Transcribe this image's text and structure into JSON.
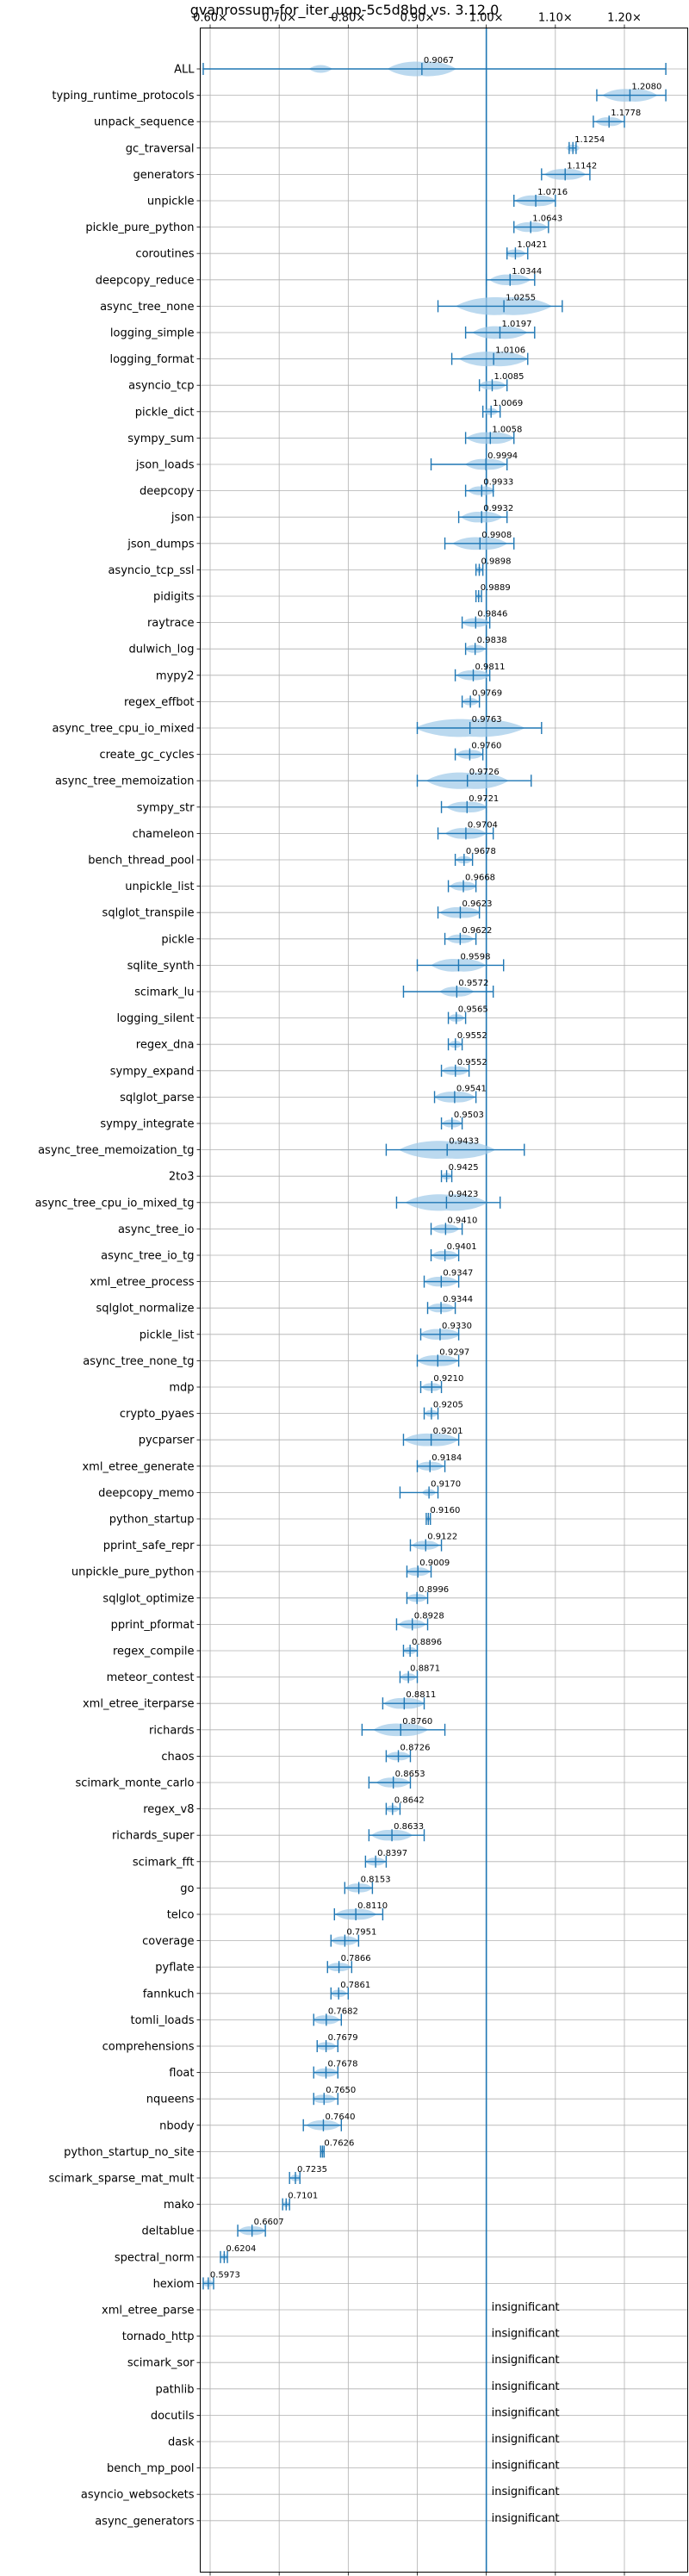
{
  "chart_data": {
    "type": "violin",
    "title": "gvanrossum-for_iter_uop-5c5d8bd vs. 3.12.0",
    "xlabel": "",
    "ylabel": "",
    "xlim": [
      0.55,
      1.27
    ],
    "xticks": [
      0.6,
      0.7,
      0.8,
      0.9,
      1.0,
      1.1,
      1.2
    ],
    "xtick_labels": [
      "0.60×",
      "0.70×",
      "0.80×",
      "0.90×",
      "1.00×",
      "1.10×",
      "1.20×"
    ],
    "reference_line": 1.0,
    "grid": true,
    "insignificant_label": "insignificant",
    "benchmarks": [
      {
        "name": "ALL",
        "value": 0.9067,
        "label": "0.9067",
        "lo": 0.59,
        "hi": 1.26,
        "spread": 0.05
      },
      {
        "name": "typing_runtime_protocols",
        "value": 1.208,
        "label": "1.2080",
        "lo": 1.16,
        "hi": 1.26,
        "spread": 0.04
      },
      {
        "name": "unpack_sequence",
        "value": 1.1778,
        "label": "1.1778",
        "lo": 1.155,
        "hi": 1.2,
        "spread": 0.02
      },
      {
        "name": "gc_traversal",
        "value": 1.1254,
        "label": "1.1254",
        "lo": 1.12,
        "hi": 1.13,
        "spread": 0.01
      },
      {
        "name": "generators",
        "value": 1.1142,
        "label": "1.1142",
        "lo": 1.08,
        "hi": 1.15,
        "spread": 0.03
      },
      {
        "name": "unpickle",
        "value": 1.0716,
        "label": "1.0716",
        "lo": 1.04,
        "hi": 1.1,
        "spread": 0.03
      },
      {
        "name": "pickle_pure_python",
        "value": 1.0643,
        "label": "1.0643",
        "lo": 1.04,
        "hi": 1.09,
        "spread": 0.025
      },
      {
        "name": "coroutines",
        "value": 1.0421,
        "label": "1.0421",
        "lo": 1.03,
        "hi": 1.06,
        "spread": 0.015
      },
      {
        "name": "deepcopy_reduce",
        "value": 1.0344,
        "label": "1.0344",
        "lo": 1.0,
        "hi": 1.07,
        "spread": 0.03
      },
      {
        "name": "async_tree_none",
        "value": 1.0255,
        "label": "1.0255",
        "lo": 0.93,
        "hi": 1.11,
        "spread": 0.07
      },
      {
        "name": "logging_simple",
        "value": 1.0197,
        "label": "1.0197",
        "lo": 0.97,
        "hi": 1.07,
        "spread": 0.04
      },
      {
        "name": "logging_format",
        "value": 1.0106,
        "label": "1.0106",
        "lo": 0.95,
        "hi": 1.06,
        "spread": 0.05
      },
      {
        "name": "asyncio_tcp",
        "value": 1.0085,
        "label": "1.0085",
        "lo": 0.99,
        "hi": 1.03,
        "spread": 0.02
      },
      {
        "name": "pickle_dict",
        "value": 1.0069,
        "label": "1.0069",
        "lo": 0.995,
        "hi": 1.02,
        "spread": 0.01
      },
      {
        "name": "sympy_sum",
        "value": 1.0058,
        "label": "1.0058",
        "lo": 0.97,
        "hi": 1.04,
        "spread": 0.035
      },
      {
        "name": "json_loads",
        "value": 0.9994,
        "label": "0.9994",
        "lo": 0.92,
        "hi": 1.03,
        "spread": 0.03
      },
      {
        "name": "deepcopy",
        "value": 0.9933,
        "label": "0.9933",
        "lo": 0.97,
        "hi": 1.01,
        "spread": 0.02
      },
      {
        "name": "json",
        "value": 0.9932,
        "label": "0.9932",
        "lo": 0.96,
        "hi": 1.03,
        "spread": 0.03
      },
      {
        "name": "json_dumps",
        "value": 0.9908,
        "label": "0.9908",
        "lo": 0.94,
        "hi": 1.04,
        "spread": 0.04
      },
      {
        "name": "asyncio_tcp_ssl",
        "value": 0.9898,
        "label": "0.9898",
        "lo": 0.985,
        "hi": 0.995,
        "spread": 0.005
      },
      {
        "name": "pidigits",
        "value": 0.9889,
        "label": "0.9889",
        "lo": 0.985,
        "hi": 0.993,
        "spread": 0.003
      },
      {
        "name": "raytrace",
        "value": 0.9846,
        "label": "0.9846",
        "lo": 0.965,
        "hi": 1.005,
        "spread": 0.02
      },
      {
        "name": "dulwich_log",
        "value": 0.9838,
        "label": "0.9838",
        "lo": 0.97,
        "hi": 1.0,
        "spread": 0.015
      },
      {
        "name": "mypy2",
        "value": 0.9811,
        "label": "0.9811",
        "lo": 0.955,
        "hi": 1.005,
        "spread": 0.025
      },
      {
        "name": "regex_effbot",
        "value": 0.9769,
        "label": "0.9769",
        "lo": 0.965,
        "hi": 0.99,
        "spread": 0.012
      },
      {
        "name": "async_tree_cpu_io_mixed",
        "value": 0.9763,
        "label": "0.9763",
        "lo": 0.9,
        "hi": 1.08,
        "spread": 0.08
      },
      {
        "name": "create_gc_cycles",
        "value": 0.976,
        "label": "0.9760",
        "lo": 0.955,
        "hi": 0.995,
        "spread": 0.02
      },
      {
        "name": "async_tree_memoization",
        "value": 0.9726,
        "label": "0.9726",
        "lo": 0.9,
        "hi": 1.065,
        "spread": 0.06
      },
      {
        "name": "sympy_str",
        "value": 0.9721,
        "label": "0.9721",
        "lo": 0.935,
        "hi": 1.0,
        "spread": 0.03
      },
      {
        "name": "chameleon",
        "value": 0.9704,
        "label": "0.9704",
        "lo": 0.93,
        "hi": 1.01,
        "spread": 0.03
      },
      {
        "name": "bench_thread_pool",
        "value": 0.9678,
        "label": "0.9678",
        "lo": 0.955,
        "hi": 0.98,
        "spread": 0.012
      },
      {
        "name": "unpickle_list",
        "value": 0.9668,
        "label": "0.9668",
        "lo": 0.945,
        "hi": 0.985,
        "spread": 0.02
      },
      {
        "name": "sqlglot_transpile",
        "value": 0.9623,
        "label": "0.9623",
        "lo": 0.93,
        "hi": 0.99,
        "spread": 0.03
      },
      {
        "name": "pickle",
        "value": 0.9622,
        "label": "0.9622",
        "lo": 0.94,
        "hi": 0.985,
        "spread": 0.02
      },
      {
        "name": "sqlite_synth",
        "value": 0.9598,
        "label": "0.9598",
        "lo": 0.9,
        "hi": 1.025,
        "spread": 0.04
      },
      {
        "name": "scimark_lu",
        "value": 0.9572,
        "label": "0.9572",
        "lo": 0.88,
        "hi": 1.01,
        "spread": 0.025
      },
      {
        "name": "logging_silent",
        "value": 0.9565,
        "label": "0.9565",
        "lo": 0.945,
        "hi": 0.97,
        "spread": 0.012
      },
      {
        "name": "regex_dna",
        "value": 0.9552,
        "label": "0.9552",
        "lo": 0.945,
        "hi": 0.965,
        "spread": 0.01
      },
      {
        "name": "sympy_expand",
        "value": 0.9552,
        "label": "0.9552",
        "lo": 0.935,
        "hi": 0.975,
        "spread": 0.02
      },
      {
        "name": "sqlglot_parse",
        "value": 0.9541,
        "label": "0.9541",
        "lo": 0.925,
        "hi": 0.985,
        "spread": 0.03
      },
      {
        "name": "sympy_integrate",
        "value": 0.9503,
        "label": "0.9503",
        "lo": 0.935,
        "hi": 0.965,
        "spread": 0.015
      },
      {
        "name": "async_tree_memoization_tg",
        "value": 0.9433,
        "label": "0.9433",
        "lo": 0.855,
        "hi": 1.055,
        "spread": 0.07
      },
      {
        "name": "2to3",
        "value": 0.9425,
        "label": "0.9425",
        "lo": 0.935,
        "hi": 0.95,
        "spread": 0.008
      },
      {
        "name": "async_tree_cpu_io_mixed_tg",
        "value": 0.9423,
        "label": "0.9423",
        "lo": 0.87,
        "hi": 1.02,
        "spread": 0.06
      },
      {
        "name": "async_tree_io",
        "value": 0.941,
        "label": "0.9410",
        "lo": 0.92,
        "hi": 0.965,
        "spread": 0.02
      },
      {
        "name": "async_tree_io_tg",
        "value": 0.9401,
        "label": "0.9401",
        "lo": 0.92,
        "hi": 0.96,
        "spread": 0.02
      },
      {
        "name": "xml_etree_process",
        "value": 0.9347,
        "label": "0.9347",
        "lo": 0.91,
        "hi": 0.96,
        "spread": 0.025
      },
      {
        "name": "sqlglot_normalize",
        "value": 0.9344,
        "label": "0.9344",
        "lo": 0.915,
        "hi": 0.955,
        "spread": 0.02
      },
      {
        "name": "pickle_list",
        "value": 0.933,
        "label": "0.9330",
        "lo": 0.905,
        "hi": 0.96,
        "spread": 0.03
      },
      {
        "name": "async_tree_none_tg",
        "value": 0.9297,
        "label": "0.9297",
        "lo": 0.9,
        "hi": 0.96,
        "spread": 0.03
      },
      {
        "name": "mdp",
        "value": 0.921,
        "label": "0.9210",
        "lo": 0.905,
        "hi": 0.935,
        "spread": 0.015
      },
      {
        "name": "crypto_pyaes",
        "value": 0.9205,
        "label": "0.9205",
        "lo": 0.91,
        "hi": 0.93,
        "spread": 0.01
      },
      {
        "name": "pycparser",
        "value": 0.9201,
        "label": "0.9201",
        "lo": 0.88,
        "hi": 0.96,
        "spread": 0.04
      },
      {
        "name": "xml_etree_generate",
        "value": 0.9184,
        "label": "0.9184",
        "lo": 0.9,
        "hi": 0.94,
        "spread": 0.02
      },
      {
        "name": "deepcopy_memo",
        "value": 0.917,
        "label": "0.9170",
        "lo": 0.875,
        "hi": 0.93,
        "spread": 0.01
      },
      {
        "name": "python_startup",
        "value": 0.916,
        "label": "0.9160",
        "lo": 0.913,
        "hi": 0.919,
        "spread": 0.003
      },
      {
        "name": "pprint_safe_repr",
        "value": 0.9122,
        "label": "0.9122",
        "lo": 0.89,
        "hi": 0.935,
        "spread": 0.02
      },
      {
        "name": "unpickle_pure_python",
        "value": 0.9009,
        "label": "0.9009",
        "lo": 0.885,
        "hi": 0.92,
        "spread": 0.018
      },
      {
        "name": "sqlglot_optimize",
        "value": 0.8996,
        "label": "0.8996",
        "lo": 0.885,
        "hi": 0.915,
        "spread": 0.015
      },
      {
        "name": "pprint_pformat",
        "value": 0.8928,
        "label": "0.8928",
        "lo": 0.87,
        "hi": 0.915,
        "spread": 0.02
      },
      {
        "name": "regex_compile",
        "value": 0.8896,
        "label": "0.8896",
        "lo": 0.88,
        "hi": 0.9,
        "spread": 0.01
      },
      {
        "name": "meteor_contest",
        "value": 0.8871,
        "label": "0.8871",
        "lo": 0.875,
        "hi": 0.9,
        "spread": 0.012
      },
      {
        "name": "xml_etree_iterparse",
        "value": 0.8811,
        "label": "0.8811",
        "lo": 0.85,
        "hi": 0.91,
        "spread": 0.03
      },
      {
        "name": "richards",
        "value": 0.876,
        "label": "0.8760",
        "lo": 0.82,
        "hi": 0.94,
        "spread": 0.04
      },
      {
        "name": "chaos",
        "value": 0.8726,
        "label": "0.8726",
        "lo": 0.855,
        "hi": 0.89,
        "spread": 0.018
      },
      {
        "name": "scimark_monte_carlo",
        "value": 0.8653,
        "label": "0.8653",
        "lo": 0.83,
        "hi": 0.89,
        "spread": 0.025
      },
      {
        "name": "regex_v8",
        "value": 0.8642,
        "label": "0.8642",
        "lo": 0.855,
        "hi": 0.875,
        "spread": 0.01
      },
      {
        "name": "richards_super",
        "value": 0.8633,
        "label": "0.8633",
        "lo": 0.83,
        "hi": 0.91,
        "spread": 0.03
      },
      {
        "name": "scimark_fft",
        "value": 0.8397,
        "label": "0.8397",
        "lo": 0.825,
        "hi": 0.855,
        "spread": 0.015
      },
      {
        "name": "go",
        "value": 0.8153,
        "label": "0.8153",
        "lo": 0.795,
        "hi": 0.835,
        "spread": 0.02
      },
      {
        "name": "telco",
        "value": 0.811,
        "label": "0.8110",
        "lo": 0.78,
        "hi": 0.85,
        "spread": 0.03
      },
      {
        "name": "coverage",
        "value": 0.7951,
        "label": "0.7951",
        "lo": 0.775,
        "hi": 0.815,
        "spread": 0.02
      },
      {
        "name": "pyflate",
        "value": 0.7866,
        "label": "0.7866",
        "lo": 0.77,
        "hi": 0.805,
        "spread": 0.018
      },
      {
        "name": "fannkuch",
        "value": 0.7861,
        "label": "0.7861",
        "lo": 0.775,
        "hi": 0.8,
        "spread": 0.012
      },
      {
        "name": "tomli_loads",
        "value": 0.7682,
        "label": "0.7682",
        "lo": 0.75,
        "hi": 0.79,
        "spread": 0.02
      },
      {
        "name": "comprehensions",
        "value": 0.7679,
        "label": "0.7679",
        "lo": 0.755,
        "hi": 0.785,
        "spread": 0.015
      },
      {
        "name": "float",
        "value": 0.7678,
        "label": "0.7678",
        "lo": 0.75,
        "hi": 0.785,
        "spread": 0.018
      },
      {
        "name": "nqueens",
        "value": 0.765,
        "label": "0.7650",
        "lo": 0.75,
        "hi": 0.785,
        "spread": 0.018
      },
      {
        "name": "nbody",
        "value": 0.764,
        "label": "0.7640",
        "lo": 0.735,
        "hi": 0.79,
        "spread": 0.025
      },
      {
        "name": "python_startup_no_site",
        "value": 0.7626,
        "label": "0.7626",
        "lo": 0.76,
        "hi": 0.765,
        "spread": 0.003
      },
      {
        "name": "scimark_sparse_mat_mult",
        "value": 0.7235,
        "label": "0.7235",
        "lo": 0.715,
        "hi": 0.73,
        "spread": 0.008
      },
      {
        "name": "mako",
        "value": 0.7101,
        "label": "0.7101",
        "lo": 0.705,
        "hi": 0.715,
        "spread": 0.005
      },
      {
        "name": "deltablue",
        "value": 0.6607,
        "label": "0.6607",
        "lo": 0.64,
        "hi": 0.68,
        "spread": 0.02
      },
      {
        "name": "spectral_norm",
        "value": 0.6204,
        "label": "0.6204",
        "lo": 0.615,
        "hi": 0.625,
        "spread": 0.005
      },
      {
        "name": "hexiom",
        "value": 0.5973,
        "label": "0.5973",
        "lo": 0.59,
        "hi": 0.605,
        "spread": 0.008
      },
      {
        "name": "xml_etree_parse",
        "insignificant": true
      },
      {
        "name": "tornado_http",
        "insignificant": true
      },
      {
        "name": "scimark_sor",
        "insignificant": true
      },
      {
        "name": "pathlib",
        "insignificant": true
      },
      {
        "name": "docutils",
        "insignificant": true
      },
      {
        "name": "dask",
        "insignificant": true
      },
      {
        "name": "bench_mp_pool",
        "insignificant": true
      },
      {
        "name": "asyncio_websockets",
        "insignificant": true
      },
      {
        "name": "async_generators",
        "insignificant": true
      }
    ]
  }
}
